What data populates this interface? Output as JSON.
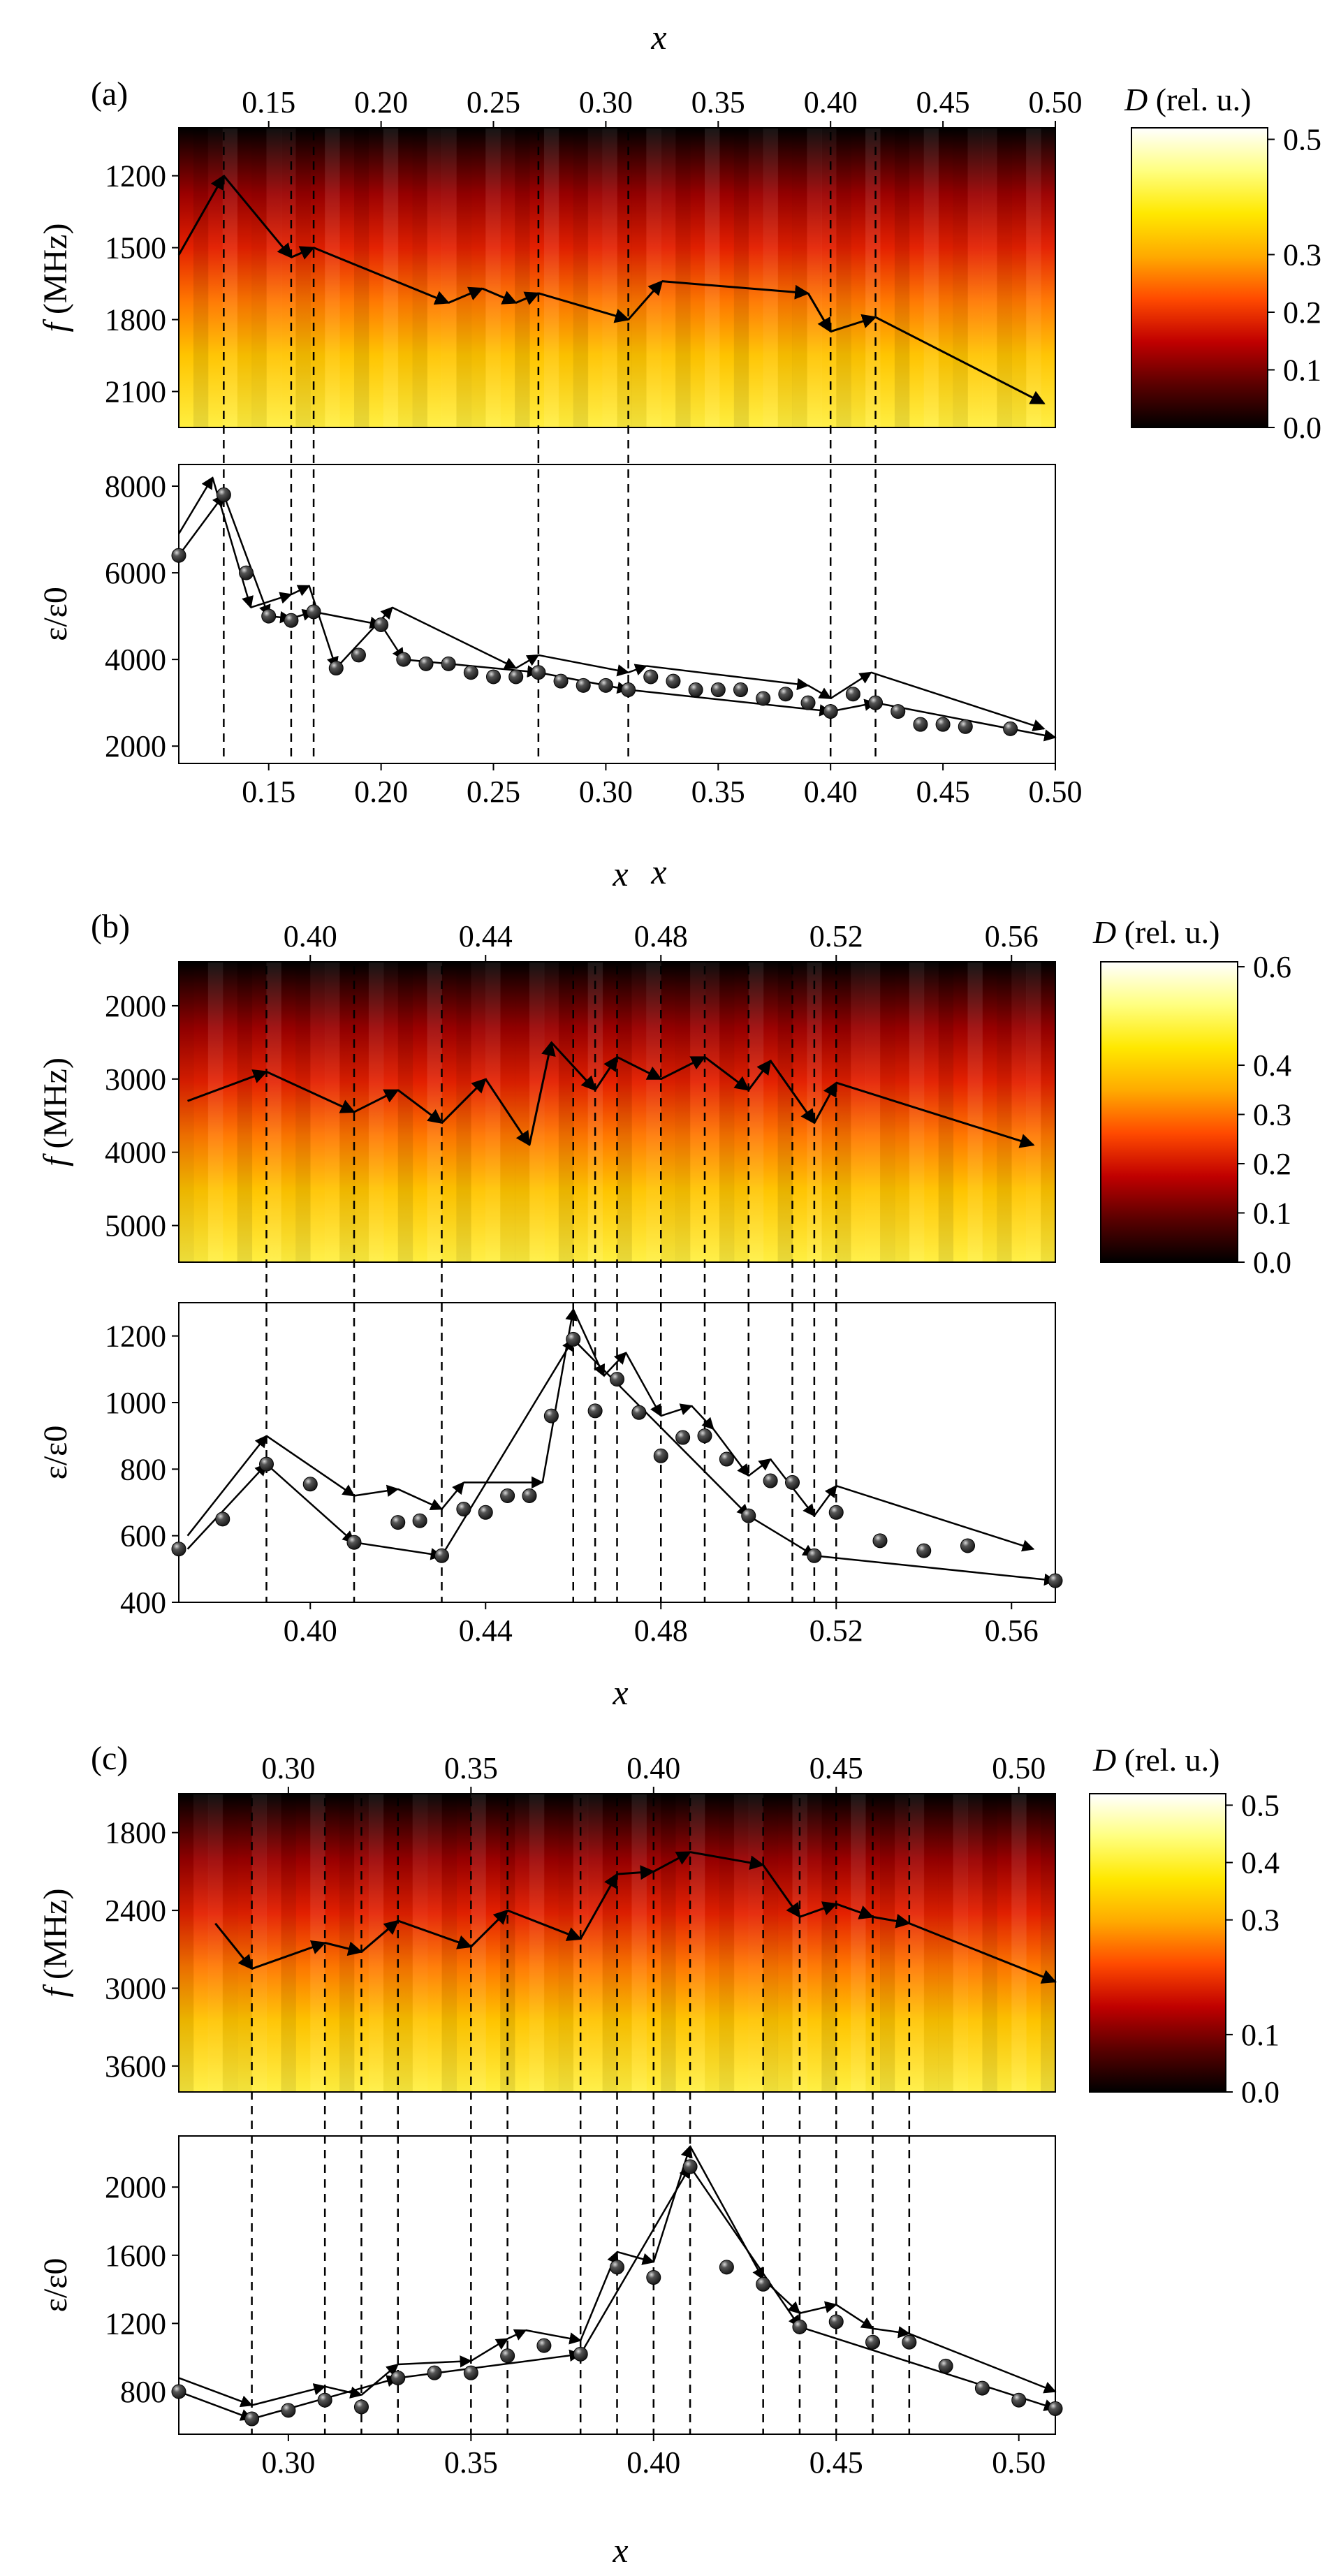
{
  "colors": {
    "marker": "#1a1a1a",
    "line": "#000000",
    "colormap": [
      "#000000",
      "#5a0000",
      "#c00000",
      "#ff4a00",
      "#ffaa00",
      "#ffe800",
      "#ffff80",
      "#ffffff"
    ]
  },
  "chart_data": [
    {
      "type": "line",
      "panel_label": "(a)",
      "title": "",
      "xlabel": "x",
      "x_ticks": [
        "0.15",
        "0.20",
        "0.25",
        "0.30",
        "0.35",
        "0.40",
        "0.45",
        "0.50"
      ],
      "xlim": [
        0.11,
        0.5
      ],
      "heatmap": {
        "ylabel_var": "f",
        "ylabel_unit": "(MHz)",
        "y_ticks": [
          "1200",
          "1500",
          "1800",
          "2100"
        ],
        "ylim_top": 1000,
        "ylim_bottom": 2250,
        "colorbar_title_var": "D",
        "colorbar_title_unit": "(rel. u.)",
        "colorbar_ticks": [
          "0.0",
          "0.1",
          "0.2",
          "0.3",
          "0.5"
        ],
        "peak_path": [
          [
            0.11,
            1530
          ],
          [
            0.13,
            1200
          ],
          [
            0.16,
            1540
          ],
          [
            0.17,
            1500
          ],
          [
            0.23,
            1730
          ],
          [
            0.245,
            1670
          ],
          [
            0.26,
            1730
          ],
          [
            0.27,
            1690
          ],
          [
            0.31,
            1800
          ],
          [
            0.325,
            1640
          ],
          [
            0.39,
            1690
          ],
          [
            0.4,
            1850
          ],
          [
            0.42,
            1790
          ],
          [
            0.495,
            2150
          ]
        ]
      },
      "ylabel": "ε/ε0",
      "y_ticks": [
        "2000",
        "4000",
        "6000",
        "8000"
      ],
      "ylim": [
        1600,
        8500
      ],
      "series": [
        {
          "name": "ε/ε0",
          "x": [
            0.11,
            0.13,
            0.14,
            0.15,
            0.16,
            0.17,
            0.18,
            0.19,
            0.2,
            0.21,
            0.22,
            0.23,
            0.24,
            0.25,
            0.26,
            0.27,
            0.28,
            0.29,
            0.3,
            0.31,
            0.32,
            0.33,
            0.34,
            0.35,
            0.36,
            0.37,
            0.38,
            0.39,
            0.4,
            0.41,
            0.42,
            0.43,
            0.44,
            0.45,
            0.46,
            0.48
          ],
          "values": [
            6400,
            7800,
            6000,
            5000,
            4900,
            5100,
            3800,
            4100,
            4800,
            4000,
            3900,
            3900,
            3700,
            3600,
            3600,
            3700,
            3500,
            3400,
            3400,
            3300,
            3600,
            3500,
            3300,
            3300,
            3300,
            3100,
            3200,
            3000,
            2800,
            3200,
            3000,
            2800,
            2500,
            2500,
            2450,
            2400
          ]
        }
      ],
      "arrows": [
        [
          [
            0.11,
            6900
          ],
          [
            0.125,
            8200
          ],
          [
            0.142,
            5200
          ],
          [
            0.16,
            5500
          ],
          [
            0.168,
            5700
          ],
          [
            0.18,
            3800
          ],
          [
            0.205,
            5200
          ],
          [
            0.26,
            3800
          ],
          [
            0.27,
            4100
          ],
          [
            0.31,
            3700
          ],
          [
            0.318,
            3850
          ],
          [
            0.39,
            3400
          ],
          [
            0.4,
            3100
          ],
          [
            0.418,
            3700
          ],
          [
            0.495,
            2400
          ]
        ],
        [
          [
            0.11,
            6400
          ],
          [
            0.13,
            7800
          ],
          [
            0.15,
            5000
          ],
          [
            0.16,
            4950
          ],
          [
            0.17,
            5100
          ],
          [
            0.2,
            4800
          ],
          [
            0.21,
            4000
          ],
          [
            0.27,
            3700
          ],
          [
            0.31,
            3300
          ],
          [
            0.4,
            2800
          ],
          [
            0.42,
            3000
          ],
          [
            0.5,
            2200
          ]
        ]
      ],
      "vlines": [
        0.13,
        0.16,
        0.17,
        0.27,
        0.31,
        0.4,
        0.42
      ]
    },
    {
      "type": "line",
      "panel_label": "(b)",
      "title": "",
      "xlabel": "x",
      "x_ticks": [
        "0.40",
        "0.44",
        "0.48",
        "0.52",
        "0.56"
      ],
      "xlim": [
        0.37,
        0.57
      ],
      "heatmap": {
        "ylabel_var": "f",
        "ylabel_unit": "(MHz)",
        "y_ticks": [
          "2000",
          "3000",
          "4000",
          "5000"
        ],
        "ylim_top": 1400,
        "ylim_bottom": 5500,
        "colorbar_title_var": "D",
        "colorbar_title_unit": "(rel. u.)",
        "colorbar_ticks": [
          "0.0",
          "0.1",
          "0.2",
          "0.3",
          "0.4",
          "0.6"
        ],
        "peak_path": [
          [
            0.372,
            3300
          ],
          [
            0.39,
            2900
          ],
          [
            0.41,
            3450
          ],
          [
            0.42,
            3150
          ],
          [
            0.43,
            3600
          ],
          [
            0.44,
            3000
          ],
          [
            0.45,
            3900
          ],
          [
            0.455,
            2500
          ],
          [
            0.465,
            3150
          ],
          [
            0.47,
            2700
          ],
          [
            0.48,
            3000
          ],
          [
            0.49,
            2700
          ],
          [
            0.5,
            3150
          ],
          [
            0.505,
            2750
          ],
          [
            0.515,
            3600
          ],
          [
            0.52,
            3050
          ],
          [
            0.565,
            3900
          ]
        ]
      },
      "ylabel": "ε/ε0",
      "y_ticks": [
        "400",
        "600",
        "800",
        "1000",
        "1200"
      ],
      "ylim": [
        400,
        1300
      ],
      "series": [
        {
          "name": "ε/ε0",
          "x": [
            0.37,
            0.38,
            0.39,
            0.4,
            0.41,
            0.42,
            0.425,
            0.43,
            0.435,
            0.44,
            0.445,
            0.45,
            0.455,
            0.46,
            0.465,
            0.47,
            0.475,
            0.48,
            0.485,
            0.49,
            0.495,
            0.5,
            0.505,
            0.51,
            0.515,
            0.52,
            0.53,
            0.54,
            0.55,
            0.57
          ],
          "values": [
            560,
            650,
            815,
            755,
            580,
            640,
            645,
            540,
            680,
            670,
            720,
            720,
            960,
            1190,
            975,
            1070,
            970,
            840,
            895,
            900,
            830,
            660,
            765,
            760,
            540,
            670,
            585,
            555,
            570,
            465
          ]
        }
      ],
      "arrows": [
        [
          [
            0.372,
            600
          ],
          [
            0.39,
            900
          ],
          [
            0.41,
            720
          ],
          [
            0.42,
            740
          ],
          [
            0.43,
            680
          ],
          [
            0.435,
            760
          ],
          [
            0.453,
            760
          ],
          [
            0.46,
            1280
          ],
          [
            0.467,
            1080
          ],
          [
            0.472,
            1150
          ],
          [
            0.48,
            960
          ],
          [
            0.487,
            990
          ],
          [
            0.492,
            920
          ],
          [
            0.5,
            780
          ],
          [
            0.505,
            830
          ],
          [
            0.515,
            660
          ],
          [
            0.52,
            750
          ],
          [
            0.565,
            560
          ]
        ],
        [
          [
            0.372,
            560
          ],
          [
            0.39,
            815
          ],
          [
            0.41,
            580
          ],
          [
            0.43,
            540
          ],
          [
            0.46,
            1190
          ],
          [
            0.5,
            660
          ],
          [
            0.515,
            540
          ],
          [
            0.57,
            465
          ]
        ]
      ],
      "vlines": [
        0.39,
        0.41,
        0.43,
        0.46,
        0.465,
        0.47,
        0.48,
        0.49,
        0.5,
        0.51,
        0.515,
        0.52
      ]
    },
    {
      "type": "line",
      "panel_label": "(c)",
      "title": "",
      "xlabel": "x",
      "x_ticks": [
        "0.30",
        "0.35",
        "0.40",
        "0.45",
        "0.50"
      ],
      "xlim": [
        0.27,
        0.51
      ],
      "heatmap": {
        "ylabel_var": "f",
        "ylabel_unit": "(MHz)",
        "y_ticks": [
          "1800",
          "2400",
          "3000",
          "3600"
        ],
        "ylim_top": 1500,
        "ylim_bottom": 3800,
        "colorbar_title_var": "D",
        "colorbar_title_unit": "(rel. u.)",
        "colorbar_ticks": [
          "0.0",
          "0.1",
          "0.3",
          "0.4",
          "0.5"
        ],
        "peak_path": [
          [
            0.28,
            2500
          ],
          [
            0.29,
            2850
          ],
          [
            0.31,
            2650
          ],
          [
            0.32,
            2720
          ],
          [
            0.33,
            2480
          ],
          [
            0.35,
            2680
          ],
          [
            0.36,
            2400
          ],
          [
            0.38,
            2620
          ],
          [
            0.39,
            2120
          ],
          [
            0.4,
            2100
          ],
          [
            0.41,
            1950
          ],
          [
            0.43,
            2050
          ],
          [
            0.44,
            2450
          ],
          [
            0.45,
            2350
          ],
          [
            0.46,
            2450
          ],
          [
            0.47,
            2500
          ],
          [
            0.51,
            2950
          ]
        ]
      },
      "ylabel": "ε/ε0",
      "y_ticks": [
        "800",
        "1200",
        "1600",
        "2000"
      ],
      "ylim": [
        550,
        2300
      ],
      "series": [
        {
          "name": "ε/ε0",
          "x": [
            0.27,
            0.29,
            0.3,
            0.31,
            0.32,
            0.33,
            0.34,
            0.35,
            0.36,
            0.37,
            0.38,
            0.39,
            0.4,
            0.41,
            0.42,
            0.43,
            0.44,
            0.45,
            0.46,
            0.47,
            0.48,
            0.49,
            0.5,
            0.51
          ],
          "values": [
            800,
            640,
            690,
            750,
            710,
            880,
            910,
            910,
            1010,
            1070,
            1020,
            1530,
            1470,
            2120,
            1530,
            1430,
            1180,
            1210,
            1090,
            1090,
            950,
            820,
            750,
            700
          ]
        }
      ],
      "arrows": [
        [
          [
            0.27,
            880
          ],
          [
            0.29,
            720
          ],
          [
            0.31,
            830
          ],
          [
            0.32,
            780
          ],
          [
            0.33,
            960
          ],
          [
            0.35,
            980
          ],
          [
            0.36,
            1110
          ],
          [
            0.365,
            1160
          ],
          [
            0.38,
            1100
          ],
          [
            0.39,
            1620
          ],
          [
            0.4,
            1560
          ],
          [
            0.41,
            2240
          ],
          [
            0.43,
            1460
          ],
          [
            0.44,
            1260
          ],
          [
            0.45,
            1310
          ],
          [
            0.46,
            1170
          ],
          [
            0.47,
            1140
          ],
          [
            0.51,
            800
          ]
        ],
        [
          [
            0.27,
            800
          ],
          [
            0.29,
            640
          ],
          [
            0.33,
            880
          ],
          [
            0.38,
            1020
          ],
          [
            0.41,
            2120
          ],
          [
            0.44,
            1180
          ],
          [
            0.51,
            700
          ]
        ]
      ],
      "vlines": [
        0.29,
        0.31,
        0.32,
        0.33,
        0.35,
        0.36,
        0.38,
        0.39,
        0.4,
        0.41,
        0.43,
        0.44,
        0.45,
        0.46,
        0.47
      ]
    }
  ]
}
